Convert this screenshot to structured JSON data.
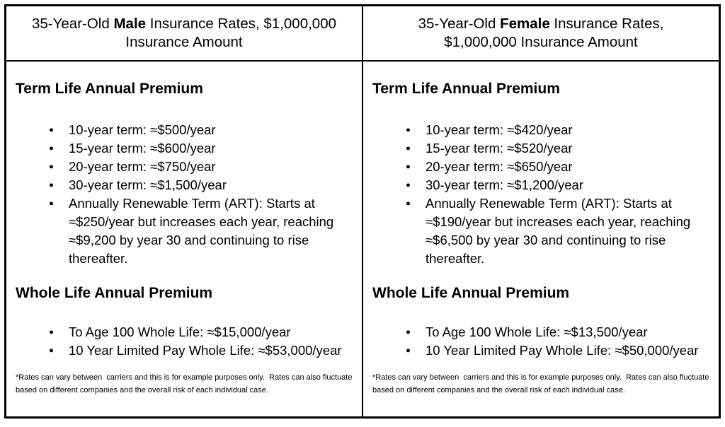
{
  "colors": {
    "border": "#000000",
    "text": "#000000",
    "background": "#ffffff"
  },
  "columns": [
    {
      "header": {
        "prefix": "35-Year-Old ",
        "gender": "Male",
        "suffix": " Insurance Rates, $1,000,000 Insurance Amount"
      },
      "term_heading": "Term Life Annual Premium",
      "term_bullets": [
        "10-year term: ≈$500/year",
        "15-year term: ≈$600/year",
        "20-year term: ≈$750/year",
        "30-year term: ≈$1,500/year",
        "Annually Renewable Term (ART): Starts at ≈$250/year but increases each year, reaching ≈$9,200 by year 30 and continuing to rise thereafter."
      ],
      "whole_heading": "Whole Life Annual Premium",
      "whole_bullets": [
        "To Age 100 Whole Life: ≈$15,000/year",
        "10 Year Limited Pay Whole Life: ≈$53,000/year"
      ],
      "footnote": "*Rates can vary between  carriers and this is for example purposes only.  Rates can also fluctuate based on different companies and the overall risk of each individual case."
    },
    {
      "header": {
        "prefix": "35-Year-Old ",
        "gender": "Female",
        "suffix": " Insurance Rates, $1,000,000 Insurance Amount"
      },
      "term_heading": "Term Life Annual Premium",
      "term_bullets": [
        "10-year term: ≈$420/year",
        "15-year term: ≈$520/year",
        "20-year term: ≈$650/year",
        "30-year term: ≈$1,200/year",
        "Annually Renewable Term (ART): Starts at ≈$190/year but increases each year, reaching ≈$6,500 by year 30 and continuing to rise thereafter."
      ],
      "whole_heading": "Whole Life Annual Premium",
      "whole_bullets": [
        "To Age 100 Whole Life: ≈$13,500/year",
        "10 Year Limited Pay Whole Life: ≈$50,000/year"
      ],
      "footnote": "*Rates can vary between  carriers and this is for example purposes only.  Rates can also fluctuate based on different companies and the overall risk of each individual case."
    }
  ]
}
